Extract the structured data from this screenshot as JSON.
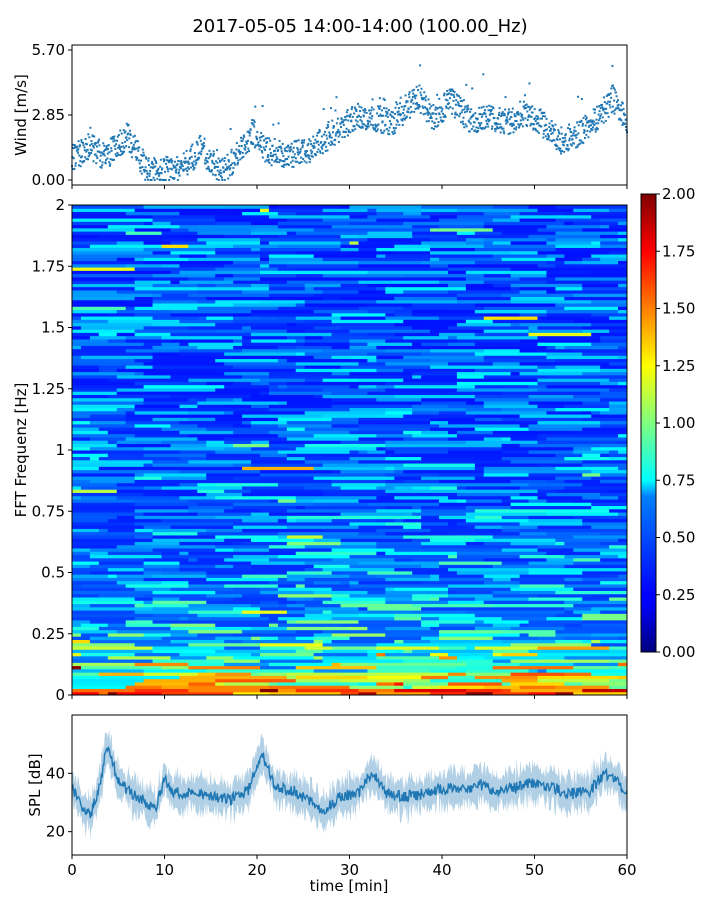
{
  "chart_data": [
    {
      "type": "scatter",
      "title": "2017-05-05 14:00-14:00 (100.00_Hz)",
      "xlabel": "",
      "ylabel": "Wind [m/s]",
      "xlim": [
        0,
        60
      ],
      "ylim": [
        0,
        5.7
      ],
      "yticks": [
        "0.00",
        "2.85",
        "5.70"
      ],
      "color": "#1f77b4",
      "x": [
        0,
        2,
        3.5,
        6,
        8,
        10,
        12,
        14,
        16,
        18,
        19.5,
        21,
        23,
        25,
        27,
        29,
        31,
        33,
        34.5,
        36,
        37.5,
        39,
        41,
        43,
        45,
        47,
        49,
        51,
        53,
        55,
        57,
        58.5,
        60
      ],
      "y": [
        0.9,
        1.5,
        1.0,
        1.9,
        0.5,
        0.4,
        0.6,
        1.4,
        0.3,
        1.1,
        2.1,
        1.3,
        1.1,
        1.2,
        1.7,
        2.3,
        2.8,
        2.7,
        2.5,
        3.1,
        3.6,
        2.7,
        3.5,
        2.6,
        2.7,
        2.5,
        3.0,
        2.4,
        1.7,
        2.1,
        2.8,
        3.6,
        2.4
      ]
    },
    {
      "type": "heatmap",
      "xlabel": "",
      "ylabel": "FFT Frequenz [Hz]",
      "xlim": [
        0,
        60
      ],
      "ylim": [
        0,
        2
      ],
      "yticks": [
        "0",
        "0.25",
        "0.5",
        "0.75",
        "1",
        "1.25",
        "1.5",
        "1.75",
        "2"
      ],
      "colorbar": {
        "min": 0,
        "max": 2,
        "ticks": [
          "0.00",
          "0.25",
          "0.50",
          "0.75",
          "1.00",
          "1.25",
          "1.50",
          "1.75",
          "2.00"
        ],
        "colormap": "jet"
      }
    },
    {
      "type": "area",
      "xlabel": "time [min]",
      "ylabel": "SPL [dB]",
      "xlim": [
        0,
        60
      ],
      "ylim": [
        12,
        60
      ],
      "yticks": [
        "20",
        "40"
      ],
      "xticks": [
        "0",
        "10",
        "20",
        "30",
        "40",
        "50",
        "60"
      ],
      "color": "#1f77b4",
      "x": [
        0,
        1,
        2,
        3,
        3.8,
        5,
        7,
        9,
        10,
        11,
        13,
        15,
        17,
        19,
        20.5,
        22,
        24,
        26,
        27,
        29,
        31,
        32.5,
        34,
        36,
        38,
        40,
        42,
        44,
        46,
        48,
        50,
        52,
        54,
        56,
        57.5,
        59,
        60
      ],
      "y": [
        36,
        28,
        25,
        36,
        50,
        37,
        32,
        28,
        38,
        33,
        34,
        32,
        31,
        34,
        47,
        35,
        34,
        30,
        26,
        32,
        33,
        41,
        33,
        32,
        33,
        35,
        34,
        36,
        34,
        35,
        37,
        35,
        33,
        34,
        40,
        37,
        33
      ]
    }
  ]
}
